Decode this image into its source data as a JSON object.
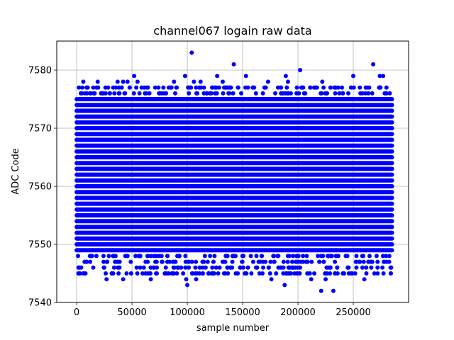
{
  "chart_data": {
    "type": "scatter",
    "title": "channel067 logain raw data",
    "xlabel": "sample number",
    "ylabel": "ADC Code",
    "xlim": [
      -18000,
      300000
    ],
    "ylim": [
      7540,
      7585
    ],
    "xticks": [
      0,
      50000,
      100000,
      150000,
      200000,
      250000
    ],
    "yticks": [
      7540,
      7550,
      7560,
      7570,
      7580
    ],
    "grid": true,
    "marker_color": "#0000ff",
    "dense_band": {
      "x_range": [
        0,
        285000
      ],
      "y_range": [
        7549,
        7575
      ],
      "y_step": 1
    },
    "sparse_levels": [
      7545,
      7546,
      7547,
      7548,
      7576,
      7577
    ],
    "outliers": [
      {
        "x": 5000,
        "y": 7577
      },
      {
        "x": 6000,
        "y": 7578
      },
      {
        "x": 10000,
        "y": 7577
      },
      {
        "x": 12000,
        "y": 7576
      },
      {
        "x": 15000,
        "y": 7577
      },
      {
        "x": 19000,
        "y": 7578
      },
      {
        "x": 33000,
        "y": 7577
      },
      {
        "x": 37000,
        "y": 7578
      },
      {
        "x": 42000,
        "y": 7578
      },
      {
        "x": 46000,
        "y": 7578
      },
      {
        "x": 48000,
        "y": 7577
      },
      {
        "x": 52000,
        "y": 7579
      },
      {
        "x": 55000,
        "y": 7578
      },
      {
        "x": 71000,
        "y": 7577
      },
      {
        "x": 88000,
        "y": 7578
      },
      {
        "x": 98000,
        "y": 7579
      },
      {
        "x": 101000,
        "y": 7577
      },
      {
        "x": 104000,
        "y": 7583
      },
      {
        "x": 106000,
        "y": 7578
      },
      {
        "x": 112000,
        "y": 7578
      },
      {
        "x": 125000,
        "y": 7577
      },
      {
        "x": 127000,
        "y": 7579
      },
      {
        "x": 132000,
        "y": 7578
      },
      {
        "x": 142000,
        "y": 7581
      },
      {
        "x": 146000,
        "y": 7577
      },
      {
        "x": 153000,
        "y": 7579
      },
      {
        "x": 160000,
        "y": 7577
      },
      {
        "x": 173000,
        "y": 7578
      },
      {
        "x": 182000,
        "y": 7577
      },
      {
        "x": 189000,
        "y": 7579
      },
      {
        "x": 191000,
        "y": 7578
      },
      {
        "x": 202000,
        "y": 7580
      },
      {
        "x": 204000,
        "y": 7577
      },
      {
        "x": 222000,
        "y": 7578
      },
      {
        "x": 233000,
        "y": 7577
      },
      {
        "x": 248000,
        "y": 7577
      },
      {
        "x": 250000,
        "y": 7579
      },
      {
        "x": 268000,
        "y": 7581
      },
      {
        "x": 274000,
        "y": 7579
      },
      {
        "x": 277000,
        "y": 7579
      },
      {
        "x": 280000,
        "y": 7577
      },
      {
        "x": 3000,
        "y": 7545
      },
      {
        "x": 8000,
        "y": 7545
      },
      {
        "x": 15000,
        "y": 7546
      },
      {
        "x": 27000,
        "y": 7544
      },
      {
        "x": 33000,
        "y": 7545
      },
      {
        "x": 42000,
        "y": 7544
      },
      {
        "x": 66000,
        "y": 7545
      },
      {
        "x": 67000,
        "y": 7544
      },
      {
        "x": 86000,
        "y": 7545
      },
      {
        "x": 99000,
        "y": 7544
      },
      {
        "x": 100000,
        "y": 7543
      },
      {
        "x": 108000,
        "y": 7544
      },
      {
        "x": 111000,
        "y": 7545
      },
      {
        "x": 124000,
        "y": 7545
      },
      {
        "x": 152000,
        "y": 7545
      },
      {
        "x": 176000,
        "y": 7544
      },
      {
        "x": 188000,
        "y": 7543
      },
      {
        "x": 192000,
        "y": 7545
      },
      {
        "x": 212000,
        "y": 7544
      },
      {
        "x": 221000,
        "y": 7542
      },
      {
        "x": 225000,
        "y": 7544
      },
      {
        "x": 232000,
        "y": 7542
      },
      {
        "x": 246000,
        "y": 7545
      },
      {
        "x": 260000,
        "y": 7544
      },
      {
        "x": 272000,
        "y": 7545
      },
      {
        "x": 284000,
        "y": 7545
      }
    ]
  }
}
